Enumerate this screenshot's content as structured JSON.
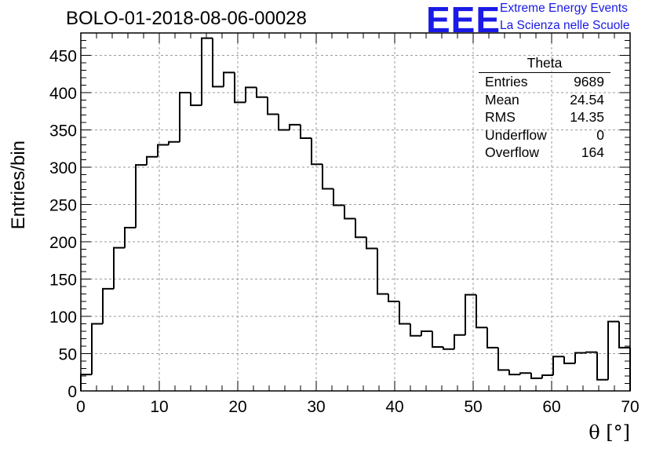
{
  "title": "BOLO-01-2018-08-06-00028",
  "logo": {
    "mark": "EEE",
    "line1": "Extreme Energy Events",
    "line2": "La Scienza nelle Scuole",
    "color": "#1a1ae6"
  },
  "stats": {
    "title": "Theta",
    "rows": [
      {
        "label": "Entries",
        "value": "9689"
      },
      {
        "label": "Mean",
        "value": "24.54"
      },
      {
        "label": "RMS",
        "value": "14.35"
      },
      {
        "label": "Underflow",
        "value": "0"
      },
      {
        "label": "Overflow",
        "value": "164"
      }
    ]
  },
  "chart_data": {
    "type": "bar",
    "style": "step-histogram",
    "title": "BOLO-01-2018-08-06-00028",
    "xlabel": "θ [°]",
    "ylabel": "Entries/bin",
    "xlim": [
      0,
      70
    ],
    "ylim": [
      0,
      480
    ],
    "grid": true,
    "bin_width": 1.4,
    "x_ticks": [
      0,
      10,
      20,
      30,
      40,
      50,
      60,
      70
    ],
    "x_tick_labels": [
      "0",
      "10",
      "20",
      "30",
      "40",
      "50",
      "60",
      "70"
    ],
    "y_ticks": [
      0,
      50,
      100,
      150,
      200,
      250,
      300,
      350,
      400,
      450
    ],
    "y_tick_labels": [
      "0",
      "50",
      "100",
      "150",
      "200",
      "250",
      "300",
      "350",
      "400",
      "450"
    ],
    "values": [
      22,
      90,
      137,
      192,
      219,
      303,
      314,
      330,
      334,
      400,
      383,
      473,
      408,
      427,
      387,
      407,
      394,
      371,
      350,
      357,
      339,
      304,
      271,
      249,
      231,
      206,
      191,
      130,
      120,
      90,
      74,
      80,
      59,
      56,
      75,
      129,
      85,
      58,
      28,
      22,
      24,
      17,
      21,
      46,
      37,
      51,
      52,
      15,
      93,
      58
    ],
    "line_color": "#000000"
  }
}
